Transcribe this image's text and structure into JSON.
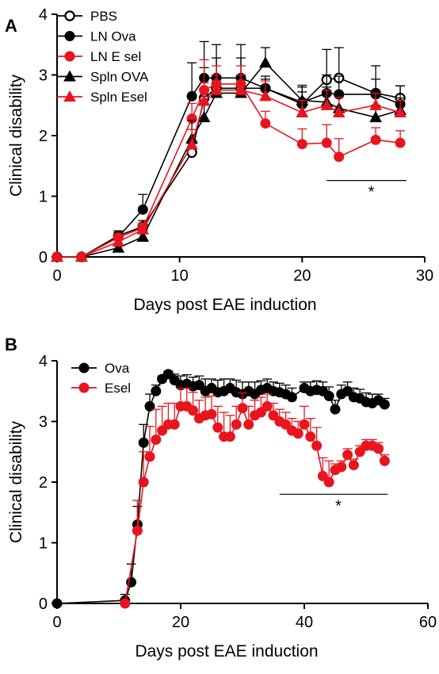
{
  "chart_data": [
    {
      "type": "line",
      "panel": "A",
      "xlabel": "Days post EAE induction",
      "ylabel": "Clinical disability",
      "xlim": [
        0,
        30
      ],
      "ylim": [
        0,
        4
      ],
      "xticks": [
        0,
        10,
        20,
        30
      ],
      "yticks": [
        0,
        1,
        2,
        3,
        4
      ],
      "x": [
        0,
        2,
        5,
        7,
        11,
        12,
        13,
        15,
        17,
        20,
        22,
        23,
        26,
        28
      ],
      "legend_position": "top-left",
      "significance": {
        "x_start": 22,
        "x_end": 28.5,
        "y": 1.26,
        "label": "*"
      },
      "series": [
        {
          "name": "PBS",
          "color": "#000000",
          "marker": "circle-open",
          "values": [
            0,
            0,
            0.35,
            0.5,
            1.72,
            2.62,
            2.78,
            2.78,
            2.78,
            2.52,
            2.92,
            2.95,
            2.7,
            2.62
          ],
          "error": [
            0,
            0,
            0.05,
            0.1,
            0.15,
            0.5,
            0.5,
            0.5,
            0.15,
            0.2,
            0.5,
            0.5,
            0.45,
            0.2
          ]
        },
        {
          "name": "LN Ova",
          "color": "#000000",
          "marker": "circle-filled",
          "values": [
            0,
            0,
            0.33,
            0.78,
            2.65,
            2.95,
            2.95,
            2.95,
            2.78,
            2.55,
            2.7,
            2.68,
            2.68,
            2.52
          ],
          "error": [
            0,
            0,
            0.1,
            0.25,
            0.55,
            0.6,
            0.55,
            0.55,
            0.2,
            0.25,
            0.3,
            0.3,
            0.25,
            0.3
          ]
        },
        {
          "name": "LN E sel",
          "color": "#e8141e",
          "marker": "circle-filled",
          "values": [
            0,
            0,
            0.32,
            0.48,
            2.28,
            2.75,
            2.85,
            2.85,
            2.2,
            1.86,
            1.88,
            1.65,
            1.93,
            1.88
          ],
          "error": [
            0,
            0,
            0.05,
            0.08,
            0.25,
            0.5,
            0.3,
            0.3,
            0.2,
            0.25,
            0.3,
            0.3,
            0.2,
            0.2
          ]
        },
        {
          "name": "Spln OVA",
          "color": "#000000",
          "marker": "triangle",
          "values": [
            0,
            0,
            0.15,
            0.33,
            1.95,
            2.3,
            2.7,
            2.7,
            3.2,
            2.58,
            2.55,
            2.45,
            2.3,
            2.42
          ],
          "error": [
            0,
            0,
            0.05,
            0.1,
            0.3,
            0.35,
            0.25,
            0.25,
            0.25,
            0.25,
            0.25,
            0.25,
            0.2,
            0.2
          ]
        },
        {
          "name": "Spln Esel",
          "color": "#e8141e",
          "marker": "triangle",
          "values": [
            0,
            0,
            0.25,
            0.45,
            1.85,
            2.57,
            2.75,
            2.75,
            2.65,
            2.38,
            2.5,
            2.38,
            2.5,
            2.38
          ],
          "error": [
            0,
            0,
            0.05,
            0.1,
            0.25,
            0.3,
            0.25,
            0.25,
            0.25,
            0.2,
            0.25,
            0.25,
            0.2,
            0.2
          ]
        }
      ]
    },
    {
      "type": "line",
      "panel": "B",
      "xlabel": "Days post EAE induction",
      "ylabel": "Clinical disability",
      "xlim": [
        0,
        60
      ],
      "ylim": [
        0,
        4
      ],
      "xticks": [
        0,
        20,
        40,
        60
      ],
      "yticks": [
        0,
        1,
        2,
        3,
        4
      ],
      "legend_position": "top-left",
      "significance": {
        "x_start": 36,
        "x_end": 53.5,
        "y": 1.8,
        "label": "*"
      },
      "series": [
        {
          "name": "Ova",
          "color": "#000000",
          "marker": "circle-filled",
          "x": [
            0,
            11,
            12,
            13,
            14,
            15,
            16,
            17,
            18,
            19,
            20,
            21,
            22,
            23,
            24,
            25,
            26,
            27,
            28,
            29,
            30,
            31,
            32,
            33,
            34,
            35,
            36,
            37,
            38,
            40,
            41,
            42,
            43,
            44,
            45,
            46,
            47,
            48,
            49,
            50,
            51,
            52,
            53
          ],
          "values": [
            0,
            0.05,
            0.35,
            1.3,
            2.65,
            3.25,
            3.5,
            3.7,
            3.78,
            3.68,
            3.6,
            3.62,
            3.58,
            3.6,
            3.5,
            3.55,
            3.48,
            3.5,
            3.55,
            3.48,
            3.45,
            3.5,
            3.45,
            3.52,
            3.55,
            3.5,
            3.48,
            3.45,
            3.4,
            3.55,
            3.5,
            3.52,
            3.5,
            3.42,
            3.2,
            3.45,
            3.5,
            3.4,
            3.38,
            3.32,
            3.3,
            3.35,
            3.28
          ],
          "error": [
            0,
            0.1,
            0.3,
            0.3,
            0.3,
            0.2,
            0.1,
            0.05,
            0.05,
            0.1,
            0.15,
            0.15,
            0.15,
            0.15,
            0.2,
            0.15,
            0.2,
            0.2,
            0.15,
            0.2,
            0.2,
            0.15,
            0.2,
            0.15,
            0.15,
            0.15,
            0.15,
            0.15,
            0.15,
            0.1,
            0.15,
            0.15,
            0.15,
            0.15,
            0.15,
            0.15,
            0.15,
            0.15,
            0.15,
            0.15,
            0.15,
            0.1,
            0.1
          ]
        },
        {
          "name": "Esel",
          "color": "#e8141e",
          "marker": "circle-filled",
          "x": [
            11,
            13,
            14,
            15,
            16,
            17,
            18,
            19,
            20,
            21,
            22,
            23,
            24,
            25,
            26,
            27,
            28,
            29,
            30,
            31,
            32,
            33,
            34,
            35,
            36,
            37,
            38,
            39,
            40,
            41,
            42,
            43,
            44,
            45,
            46,
            47,
            48,
            49,
            50,
            51,
            52,
            53
          ],
          "values": [
            0,
            1.2,
            2.0,
            2.42,
            2.7,
            2.85,
            2.95,
            2.95,
            3.25,
            3.25,
            3.18,
            3.05,
            3.1,
            3.12,
            2.9,
            2.75,
            2.75,
            2.95,
            3.22,
            2.95,
            3.1,
            3.15,
            3.25,
            3.1,
            3.0,
            2.95,
            2.85,
            2.8,
            2.95,
            2.75,
            2.6,
            2.1,
            2.0,
            2.2,
            2.25,
            2.45,
            2.28,
            2.5,
            2.6,
            2.6,
            2.55,
            2.35
          ],
          "error": [
            0.05,
            0.5,
            0.5,
            0.5,
            0.5,
            0.4,
            0.35,
            0.35,
            0.3,
            0.3,
            0.3,
            0.3,
            0.3,
            0.3,
            0.35,
            0.4,
            0.35,
            0.3,
            0.25,
            0.3,
            0.25,
            0.25,
            0.2,
            0.2,
            0.2,
            0.2,
            0.2,
            0.2,
            0.3,
            0.3,
            0.3,
            0.3,
            0.35,
            0.1,
            0.1,
            0.1,
            0.1,
            0.1,
            0.1,
            0.1,
            0.1,
            0.1
          ]
        }
      ]
    }
  ]
}
